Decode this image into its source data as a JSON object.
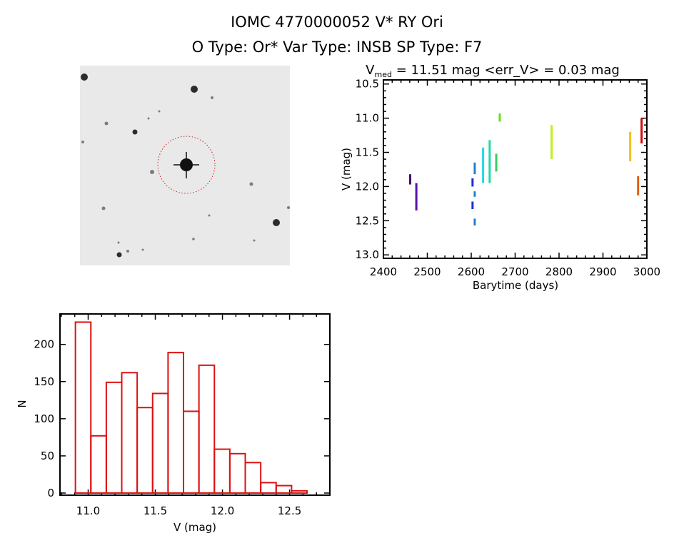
{
  "header": {
    "title_line1": "IOMC 4770000052   V* RY Ori",
    "title_line2": "O Type: Or*  Var Type: INSB  SP Type: F7"
  },
  "image_panel": {
    "description_label": "finder chart",
    "marker_color": "#cc2222"
  },
  "chart_data": [
    {
      "type": "scatter",
      "title_main": "V",
      "title_sub": "med",
      "title_rest": " = 11.51 mag <err_V> = 0.03 mag",
      "xlabel": "Barytime (days)",
      "ylabel": "V (mag)",
      "xlim": [
        2400,
        3000
      ],
      "ylim": [
        13.05,
        10.44
      ],
      "y_inverted": true,
      "xticks": [
        2400,
        2500,
        2600,
        2700,
        2800,
        2900,
        3000
      ],
      "yticks": [
        10.5,
        11.0,
        11.5,
        12.0,
        12.5,
        13.0
      ],
      "xtick_labels": [
        "2400",
        "2500",
        "2600",
        "2700",
        "2800",
        "2900",
        "3000"
      ],
      "ytick_labels": [
        "10.5",
        "11.0",
        "11.5",
        "12.0",
        "12.5",
        "13.0"
      ],
      "series": [
        {
          "x": 2461,
          "v_range": [
            11.82,
            11.97
          ],
          "color": "#4b0a6e"
        },
        {
          "x": 2475,
          "v_range": [
            11.95,
            12.35
          ],
          "color": "#5a10a8"
        },
        {
          "x": 2603,
          "v_range": [
            11.88,
            12.0
          ],
          "color": "#1a2fd0"
        },
        {
          "x": 2603,
          "v_range": [
            12.22,
            12.33
          ],
          "color": "#1a2fd0"
        },
        {
          "x": 2608,
          "v_range": [
            11.65,
            11.82
          ],
          "color": "#2080d0"
        },
        {
          "x": 2608,
          "v_range": [
            12.07,
            12.15
          ],
          "color": "#2080d0"
        },
        {
          "x": 2608,
          "v_range": [
            12.47,
            12.57
          ],
          "color": "#2080d0"
        },
        {
          "x": 2627,
          "v_range": [
            11.43,
            11.95
          ],
          "color": "#20d8e8"
        },
        {
          "x": 2642,
          "v_range": [
            11.32,
            11.95
          ],
          "color": "#20d8a8"
        },
        {
          "x": 2657,
          "v_range": [
            11.52,
            11.78
          ],
          "color": "#30d060"
        },
        {
          "x": 2665,
          "v_range": [
            10.93,
            11.05
          ],
          "color": "#60e020"
        },
        {
          "x": 2783,
          "v_range": [
            11.1,
            11.6
          ],
          "color": "#c0f020"
        },
        {
          "x": 2962,
          "v_range": [
            11.2,
            11.63
          ],
          "color": "#f0c020"
        },
        {
          "x": 2980,
          "v_range": [
            11.85,
            12.13
          ],
          "color": "#e06010"
        },
        {
          "x": 2988,
          "v_range": [
            11.0,
            11.37
          ],
          "color": "#d01010"
        }
      ]
    },
    {
      "type": "bar",
      "title": "",
      "xlabel": "V (mag)",
      "ylabel": "N",
      "xlim": [
        10.79,
        12.8
      ],
      "ylim": [
        0,
        241
      ],
      "bin_start": 10.905,
      "bin_width": 0.115,
      "values": [
        230,
        77,
        149,
        162,
        115,
        134,
        189,
        110,
        172,
        59,
        53,
        41,
        14,
        10,
        3
      ],
      "bar_color": "#dd1111",
      "xticks": [
        11.0,
        11.5,
        12.0,
        12.5
      ],
      "xtick_labels": [
        "11.0",
        "11.5",
        "12.0",
        "12.5"
      ],
      "yticks": [
        0,
        50,
        100,
        150,
        200
      ],
      "ytick_labels": [
        "0",
        "50",
        "100",
        "150",
        "200"
      ]
    }
  ]
}
